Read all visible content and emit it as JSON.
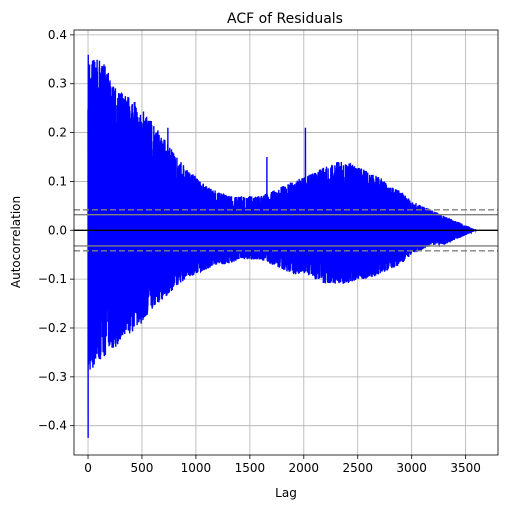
{
  "chart_data": {
    "type": "line",
    "title": "ACF of Residuals",
    "xlabel": "Lag",
    "ylabel": "Autocorrelation",
    "xlim": [
      -130,
      3800
    ],
    "ylim": [
      -0.46,
      0.41
    ],
    "xticks": [
      0,
      500,
      1000,
      1500,
      2000,
      2500,
      3000,
      3500
    ],
    "yticks": [
      -0.4,
      -0.3,
      -0.2,
      -0.1,
      0.0,
      0.1,
      0.2,
      0.3,
      0.4
    ],
    "ytick_labels": [
      "−0.4",
      "−0.3",
      "−0.2",
      "−0.1",
      "0.0",
      "0.1",
      "0.2",
      "0.3",
      "0.4"
    ],
    "grid": true,
    "n_lags": 3600,
    "series": [
      {
        "color": "#0000ff",
        "envelope": {
          "x": [
            0,
            50,
            100,
            150,
            200,
            300,
            400,
            500,
            600,
            700,
            800,
            900,
            1000,
            1100,
            1200,
            1300,
            1400,
            1500,
            1600,
            1700,
            1800,
            1900,
            2000,
            2100,
            2200,
            2300,
            2400,
            2500,
            2600,
            2700,
            2800,
            2900,
            3000,
            3100,
            3200,
            3300,
            3400,
            3500,
            3600
          ],
          "upper": [
            0.36,
            0.36,
            0.35,
            0.34,
            0.32,
            0.29,
            0.27,
            0.25,
            0.22,
            0.19,
            0.16,
            0.13,
            0.11,
            0.09,
            0.08,
            0.07,
            0.07,
            0.07,
            0.07,
            0.08,
            0.09,
            0.1,
            0.11,
            0.12,
            0.13,
            0.14,
            0.14,
            0.13,
            0.12,
            0.11,
            0.09,
            0.08,
            0.06,
            0.05,
            0.04,
            0.03,
            0.02,
            0.01,
            0.0
          ],
          "lower": [
            -0.3,
            -0.28,
            -0.27,
            -0.26,
            -0.25,
            -0.23,
            -0.21,
            -0.19,
            -0.16,
            -0.14,
            -0.12,
            -0.1,
            -0.09,
            -0.08,
            -0.07,
            -0.07,
            -0.06,
            -0.06,
            -0.06,
            -0.07,
            -0.08,
            -0.09,
            -0.09,
            -0.1,
            -0.11,
            -0.11,
            -0.11,
            -0.1,
            -0.1,
            -0.09,
            -0.08,
            -0.07,
            -0.05,
            -0.04,
            -0.03,
            -0.03,
            -0.02,
            -0.01,
            0.0
          ]
        },
        "spikes": [
          {
            "x": 1,
            "y": -0.425
          },
          {
            "x": 1658,
            "y": 0.15
          },
          {
            "x": 2015,
            "y": 0.21
          },
          {
            "x": 740,
            "y": 0.21
          }
        ]
      }
    ],
    "reference_lines": [
      {
        "y": 0.0,
        "color": "#000000",
        "style": "solid"
      },
      {
        "y": 0.032,
        "color": "#808080",
        "style": "solid"
      },
      {
        "y": -0.032,
        "color": "#808080",
        "style": "solid"
      },
      {
        "y": 0.042,
        "color": "#808080",
        "style": "dashed"
      },
      {
        "y": -0.042,
        "color": "#808080",
        "style": "dashed"
      }
    ]
  }
}
